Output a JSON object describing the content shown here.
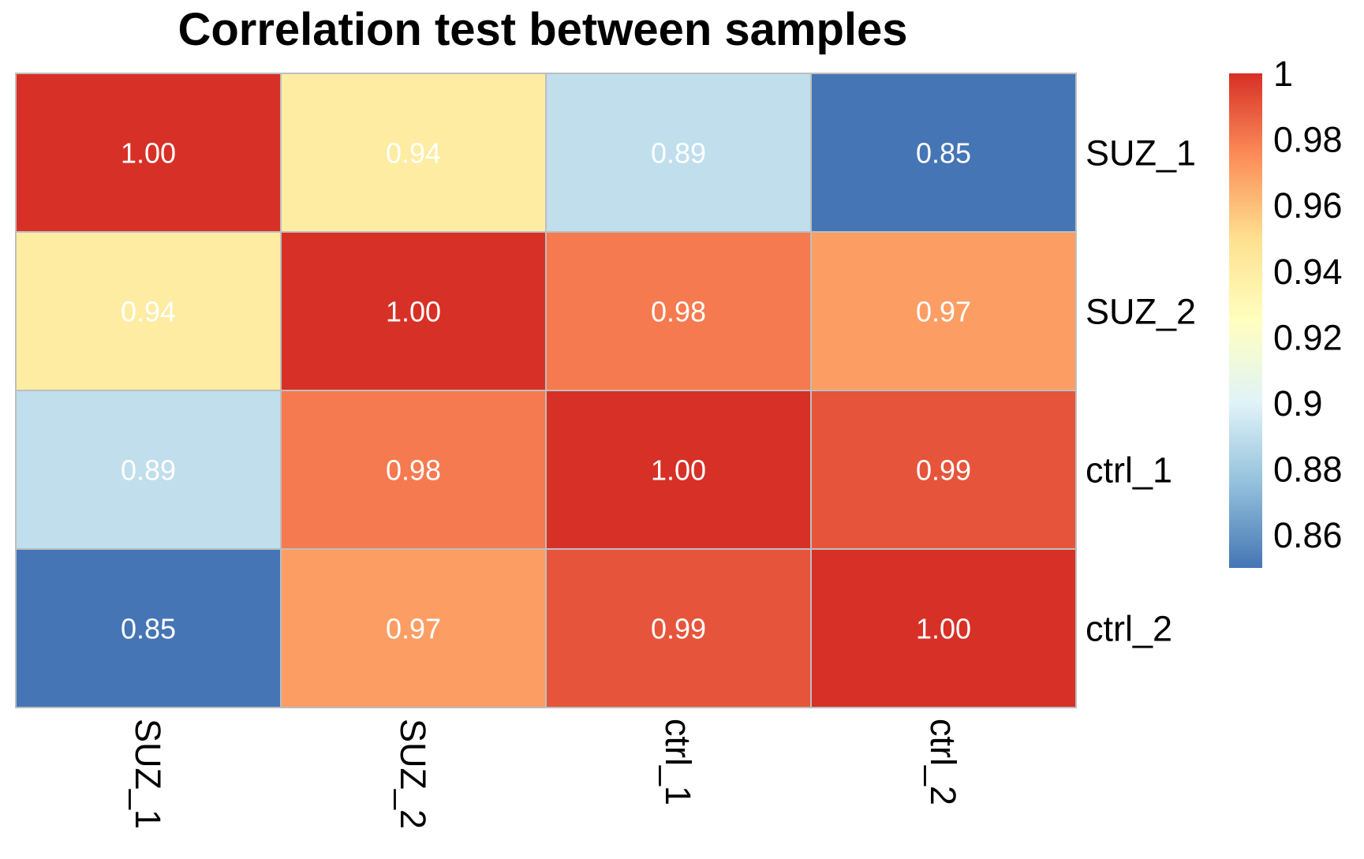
{
  "chart_data": {
    "type": "heatmap",
    "title": "Correlation test between samples",
    "rows": [
      "SUZ_1",
      "SUZ_2",
      "ctrl_1",
      "ctrl_2"
    ],
    "columns": [
      "SUZ_1",
      "SUZ_2",
      "ctrl_1",
      "ctrl_2"
    ],
    "values": [
      [
        1.0,
        0.94,
        0.89,
        0.85
      ],
      [
        0.94,
        1.0,
        0.98,
        0.97
      ],
      [
        0.89,
        0.98,
        1.0,
        0.99
      ],
      [
        0.85,
        0.97,
        0.99,
        1.0
      ]
    ],
    "labels": [
      [
        "1.00",
        "0.94",
        "0.89",
        "0.85"
      ],
      [
        "0.94",
        "1.00",
        "0.98",
        "0.97"
      ],
      [
        "0.89",
        "0.98",
        "1.00",
        "0.99"
      ],
      [
        "0.85",
        "0.97",
        "0.99",
        "1.00"
      ]
    ],
    "color_range": [
      0.85,
      1.0
    ],
    "legend": {
      "placement": "right",
      "ticks": [
        {
          "value": 1.0,
          "label": "1"
        },
        {
          "value": 0.98,
          "label": "0.98"
        },
        {
          "value": 0.96,
          "label": "0.96"
        },
        {
          "value": 0.94,
          "label": "0.94"
        },
        {
          "value": 0.92,
          "label": "0.92"
        },
        {
          "value": 0.9,
          "label": "0.9"
        },
        {
          "value": 0.88,
          "label": "0.88"
        },
        {
          "value": 0.86,
          "label": "0.86"
        }
      ]
    },
    "palette": [
      "#4575B4",
      "#91BFDB",
      "#E0F3F8",
      "#FFFFBF",
      "#FEE090",
      "#FC8D59",
      "#D73027"
    ],
    "grid_color": "#BEBEBE",
    "cell_text_color": "#FFFFFF"
  }
}
